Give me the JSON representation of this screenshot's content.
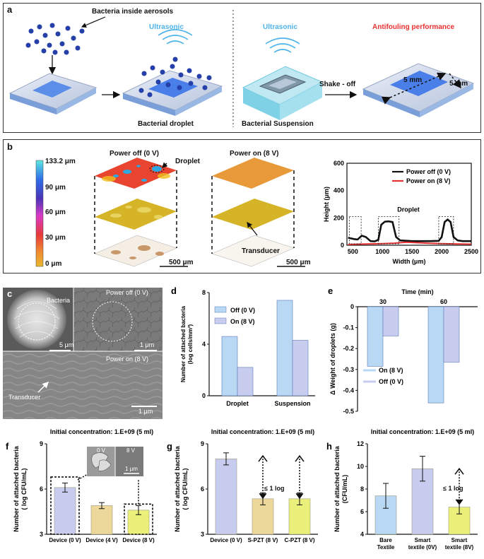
{
  "colors": {
    "ultrasonic": "#4fb3e8",
    "antifouling": "#e83030",
    "bacteria": "#2540a8",
    "blue_fill": "#b8d8f4",
    "purple_fill": "#c8cdf0",
    "yellow_fill": "#eaf07a",
    "tan_fill": "#ecd89a",
    "power_off_line": "#111111",
    "power_on_line": "#e63232"
  },
  "panel_a": {
    "letter": "a",
    "bacteria_label": "Bacteria inside aerosols",
    "ultrasonic_1": "Ultrasonic",
    "ultrasonic_2": "Ultrasonic",
    "antifouling": "Antifouling performance",
    "droplet_label": "Bacterial droplet",
    "suspension_label": "Bacterial Suspension",
    "shake_off": "Shake - off",
    "dim_1": "5 mm",
    "dim_2": "5 mm"
  },
  "panel_b": {
    "letter": "b",
    "colorbar_ticks": [
      "133.2 μm",
      "90 μm",
      "60 μm",
      "30 μm",
      "0 μm"
    ],
    "power_off_title": "Power off (0 V)",
    "power_on_title": "Power on (8 V)",
    "droplet_label": "Droplet",
    "transducer_label": "Transducer",
    "scale_1": "500 μm",
    "scale_2": "500 μm"
  },
  "panel_c": {
    "letter": "c",
    "bacteria": "Bacteria",
    "power_off": "Power off (0 V)",
    "power_on": "Power on (8 V)",
    "transducer": "Transducer",
    "scale_5um": "5 μm",
    "scale_1um_a": "1 μm",
    "scale_1um_b": "1 μm"
  },
  "panel_f_extra": {
    "inset_0v": "0 V",
    "inset_8v": "8 V",
    "inset_scale": "1 μm"
  },
  "panel_g_extra": {
    "annotation": "≤ 1 log"
  },
  "panel_h_extra": {
    "annotation": "≤ 1 log"
  },
  "chart_data": [
    {
      "id": "b-profile",
      "letter": "b",
      "type": "line",
      "xlabel": "Width (μm)",
      "ylabel": "Height (μm)",
      "xlim": [
        400,
        2500
      ],
      "ylim": [
        0,
        600
      ],
      "xticks": [
        500,
        1000,
        1500,
        2000,
        2500
      ],
      "yticks": [
        0,
        200,
        400,
        600
      ],
      "legend": [
        "Power off (0 V)",
        "Power on (8 V)"
      ],
      "annotation": "Droplet",
      "series": [
        {
          "name": "Power off (0 V)",
          "x": [
            420,
            520,
            580,
            650,
            720,
            800,
            870,
            930,
            980,
            1040,
            1100,
            1170,
            1230,
            1300,
            1500,
            1800,
            1950,
            2000,
            2050,
            2100,
            2150,
            2200,
            2270,
            2350,
            2450,
            2500
          ],
          "y": [
            55,
            45,
            42,
            70,
            60,
            30,
            28,
            40,
            150,
            172,
            175,
            170,
            60,
            35,
            30,
            30,
            32,
            60,
            170,
            188,
            170,
            60,
            35,
            30,
            30,
            30
          ]
        },
        {
          "name": "Power on (8 V)",
          "x": [
            420,
            600,
            800,
            1000,
            1200,
            1400,
            1600,
            1800,
            2000,
            2200,
            2500
          ],
          "y": [
            5,
            8,
            10,
            12,
            15,
            22,
            18,
            14,
            12,
            10,
            8
          ]
        }
      ]
    },
    {
      "id": "d-bar",
      "letter": "d",
      "type": "bar",
      "ylabel": "Number of attached bacteria (log cells/mm²)",
      "ylim": [
        0,
        8
      ],
      "yticks": [
        0,
        4,
        8
      ],
      "categories": [
        "Droplet",
        "Suspension"
      ],
      "series": [
        {
          "name": "Off (0 V)",
          "values": [
            4.6,
            7.4
          ]
        },
        {
          "name": "On (8 V)",
          "values": [
            2.2,
            4.3
          ]
        }
      ]
    },
    {
      "id": "e-bar",
      "letter": "e",
      "type": "bar",
      "title": "Time (min)",
      "ylabel": "Δ Weight of droplets (g)",
      "ylim": [
        -0.5,
        0
      ],
      "yticks": [
        "0",
        "-0.1",
        "-0.2",
        "-0.3",
        "-0.4",
        "-0.5"
      ],
      "categories": [
        "30",
        "60"
      ],
      "series": [
        {
          "name": "On (8 V)",
          "values": [
            -0.285,
            -0.46
          ]
        },
        {
          "name": "Off (0 V)",
          "values": [
            -0.14,
            -0.265
          ]
        }
      ]
    },
    {
      "id": "f-bar",
      "letter": "f",
      "type": "bar",
      "title": "Initial concentration: 1.E+09 (5 ml)",
      "ylabel": "Number of attached bacteria ( log CFU/mL)",
      "ylim": [
        3,
        9
      ],
      "yticks": [
        3,
        6,
        9
      ],
      "categories": [
        "Device (0 V)",
        "Device (4 V)",
        "Device (8 V)"
      ],
      "values": [
        6.1,
        4.9,
        4.6
      ],
      "errors": [
        0.3,
        0.2,
        0.3
      ]
    },
    {
      "id": "g-bar",
      "letter": "g",
      "type": "bar",
      "title": "Initial concentration: 1.E+09 (5 ml)",
      "ylabel": "Number of attached bacteria ( log CFU/mL)",
      "ylim": [
        3,
        9
      ],
      "yticks": [
        3,
        6,
        9
      ],
      "categories": [
        "Device (0 V)",
        "S-PZT (8 V)",
        "C-PZT (8 V)"
      ],
      "values": [
        8.0,
        5.35,
        5.35
      ],
      "errors": [
        0.4,
        0.4,
        0.4
      ]
    },
    {
      "id": "h-bar",
      "letter": "h",
      "type": "bar",
      "title": "Initial concentration: 1.E+09 (5 ml)",
      "ylabel": "Number of attached bacteria (CFU/mL)",
      "ylim": [
        4,
        12
      ],
      "yticks": [
        4,
        6,
        8,
        10,
        12
      ],
      "categories": [
        "Bare\nTextile",
        "Smart\ntextile (0V)",
        "Smart\ntextile (8V)"
      ],
      "values": [
        7.4,
        9.8,
        6.4
      ],
      "errors": [
        1.1,
        1.1,
        0.6
      ]
    }
  ]
}
